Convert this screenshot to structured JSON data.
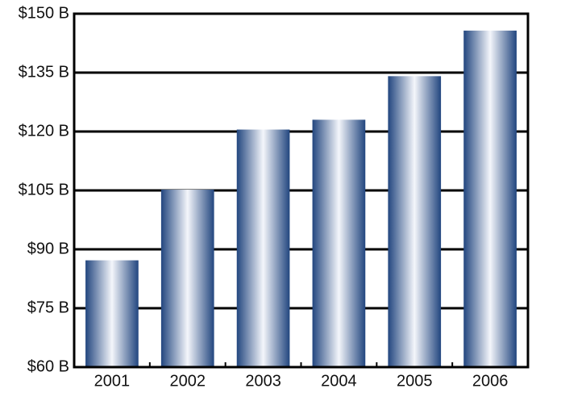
{
  "chart_data": {
    "type": "bar",
    "categories": [
      "2001",
      "2002",
      "2003",
      "2004",
      "2005",
      "2006"
    ],
    "values": [
      87.2,
      105.2,
      120.5,
      123,
      134.1,
      145.7
    ],
    "color": "#22467f",
    "ylim": [
      60,
      150
    ],
    "yticks": [
      {
        "value": 60,
        "label": "$60 B"
      },
      {
        "value": 75,
        "label": "$75 B"
      },
      {
        "value": 90,
        "label": "$90 B"
      },
      {
        "value": 105,
        "label": "$105 B"
      },
      {
        "value": 120,
        "label": "$120 B"
      },
      {
        "value": 135,
        "label": "$135 B"
      },
      {
        "value": 150,
        "label": "$150 B"
      }
    ],
    "grid": true
  }
}
